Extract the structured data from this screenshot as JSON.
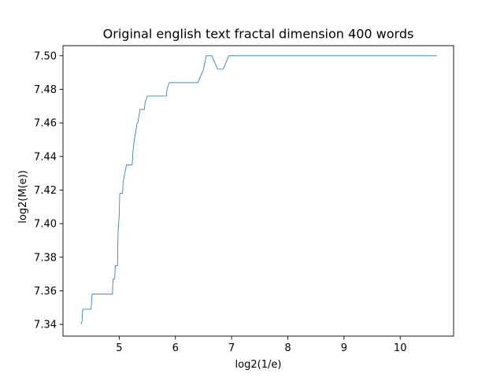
{
  "chart_data": {
    "type": "line",
    "title": "Original english text fractal dimension 400 words",
    "xlabel": "log2(1/e)",
    "ylabel": "log2(M(e))",
    "xlim": [
      4.0,
      10.95
    ],
    "ylim": [
      7.333,
      7.506
    ],
    "xticks": [
      5,
      6,
      7,
      8,
      9,
      10
    ],
    "xtick_labels": [
      "5",
      "6",
      "7",
      "8",
      "9",
      "10"
    ],
    "yticks": [
      7.34,
      7.36,
      7.38,
      7.4,
      7.42,
      7.44,
      7.46,
      7.48,
      7.5
    ],
    "ytick_labels": [
      "7.34",
      "7.36",
      "7.38",
      "7.40",
      "7.42",
      "7.44",
      "7.46",
      "7.48",
      "7.50"
    ],
    "grid": false,
    "legend": "none",
    "line_color": "#1f77b4",
    "series": [
      {
        "x": [
          4.32,
          4.34,
          4.35,
          4.5,
          4.51,
          4.52,
          4.88,
          4.89,
          4.92,
          4.93,
          4.97,
          4.98,
          5.0,
          5.01,
          5.02,
          5.03,
          5.06,
          5.07,
          5.13,
          5.14,
          5.23,
          5.24,
          5.25,
          5.27,
          5.32,
          5.33,
          5.37,
          5.38,
          5.45,
          5.46,
          5.5,
          5.51,
          5.84,
          5.85,
          5.89,
          5.9,
          6.4,
          6.5,
          6.55,
          6.6,
          6.65,
          6.7,
          6.75,
          6.8,
          6.85,
          6.9,
          6.95,
          7.0,
          10.65
        ],
        "y": [
          7.34,
          7.342,
          7.349,
          7.349,
          7.355,
          7.358,
          7.358,
          7.367,
          7.367,
          7.375,
          7.375,
          7.395,
          7.405,
          7.418,
          7.418,
          7.418,
          7.418,
          7.425,
          7.435,
          7.435,
          7.435,
          7.44,
          7.445,
          7.45,
          7.46,
          7.46,
          7.468,
          7.468,
          7.468,
          7.472,
          7.476,
          7.476,
          7.476,
          7.48,
          7.484,
          7.484,
          7.484,
          7.492,
          7.5,
          7.5,
          7.5,
          7.496,
          7.492,
          7.492,
          7.492,
          7.496,
          7.5,
          7.5,
          7.5
        ]
      }
    ]
  }
}
